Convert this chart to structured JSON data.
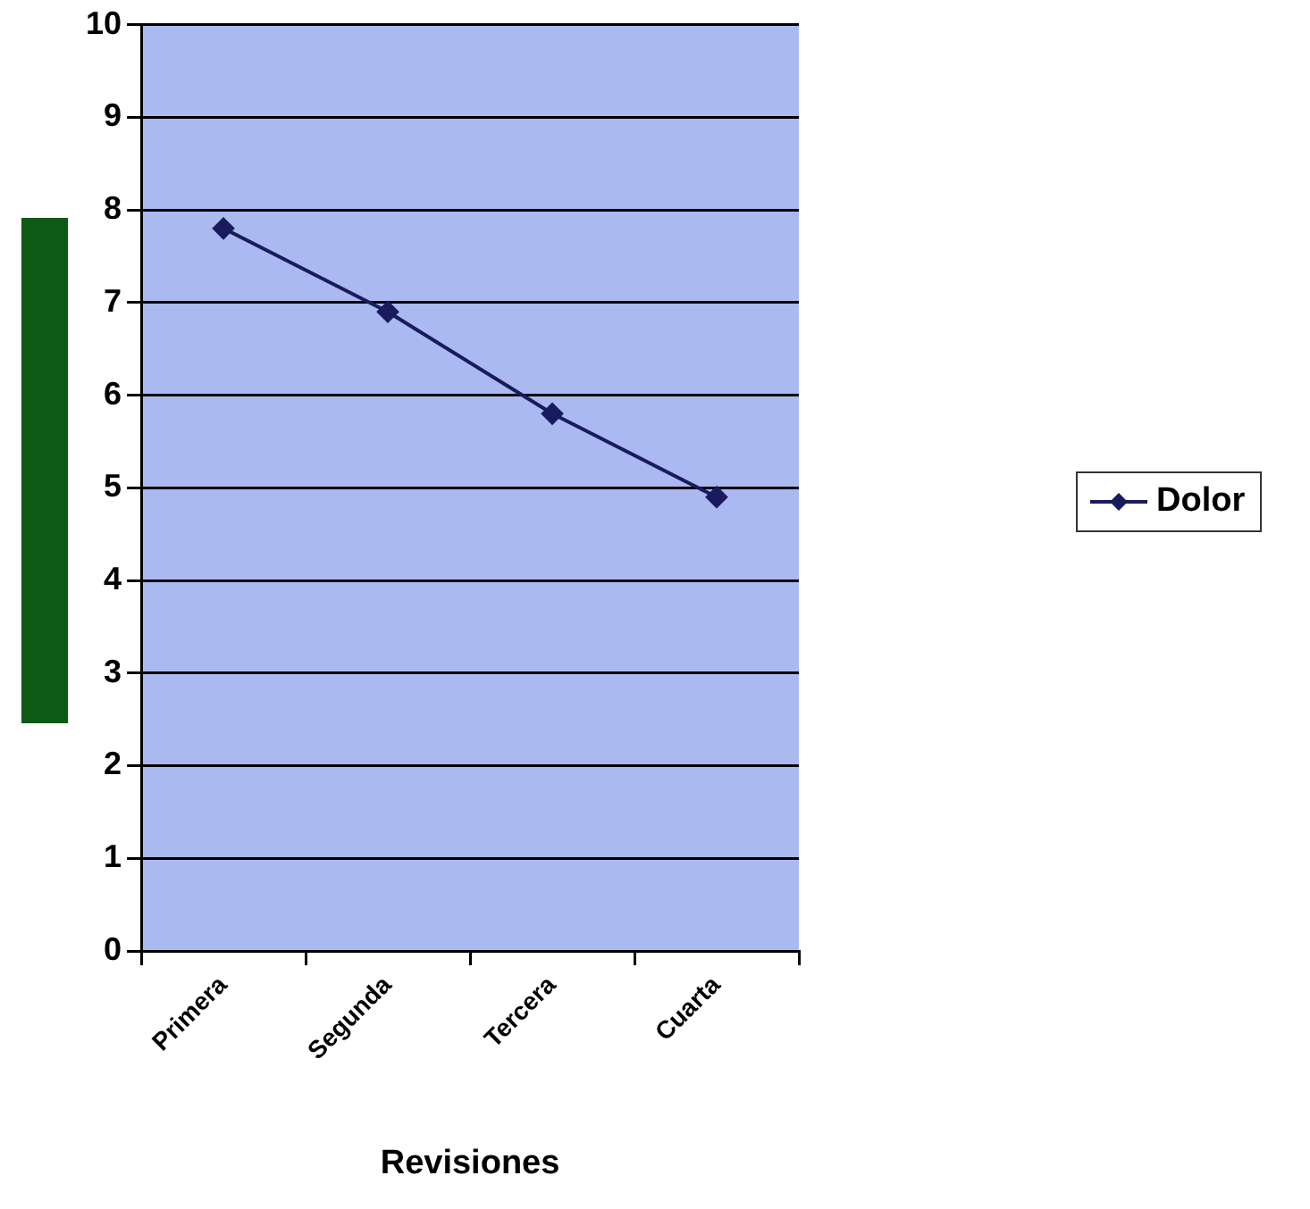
{
  "chart_data": {
    "type": "line",
    "xlabel": "Revisiones",
    "categories": [
      "Primera",
      "Segunda",
      "Tercera",
      "Cuarta"
    ],
    "series": [
      {
        "name": "Dolor",
        "color": "#1a1a5e",
        "values": [
          7.8,
          6.9,
          5.8,
          4.9
        ]
      }
    ],
    "ylim": [
      0,
      10
    ],
    "yticks": [
      0,
      1,
      2,
      3,
      4,
      5,
      6,
      7,
      8,
      9,
      10
    ],
    "grid": "y",
    "legend": "right",
    "marker": "diamond",
    "line_style": "solid"
  }
}
